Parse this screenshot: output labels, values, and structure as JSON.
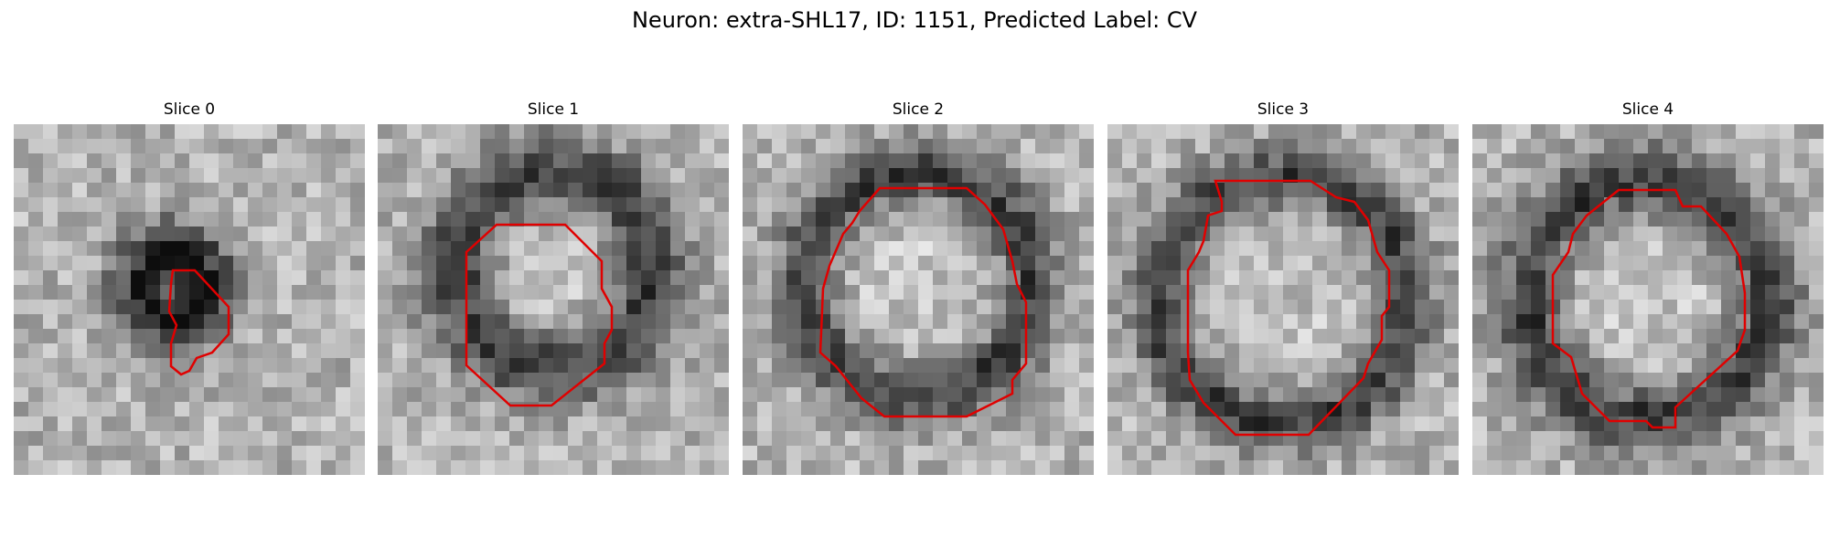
{
  "figure": {
    "title": "Neuron: extra-SHL17, ID: 1151, Predicted Label: CV"
  },
  "contour_color": "#e00000",
  "panels": [
    {
      "title": "Slice 0",
      "id": "slice-0"
    },
    {
      "title": "Slice 1",
      "id": "slice-1"
    },
    {
      "title": "Slice 2",
      "id": "slice-2"
    },
    {
      "title": "Slice 3",
      "id": "slice-3"
    },
    {
      "title": "Slice 4",
      "id": "slice-4"
    }
  ]
}
